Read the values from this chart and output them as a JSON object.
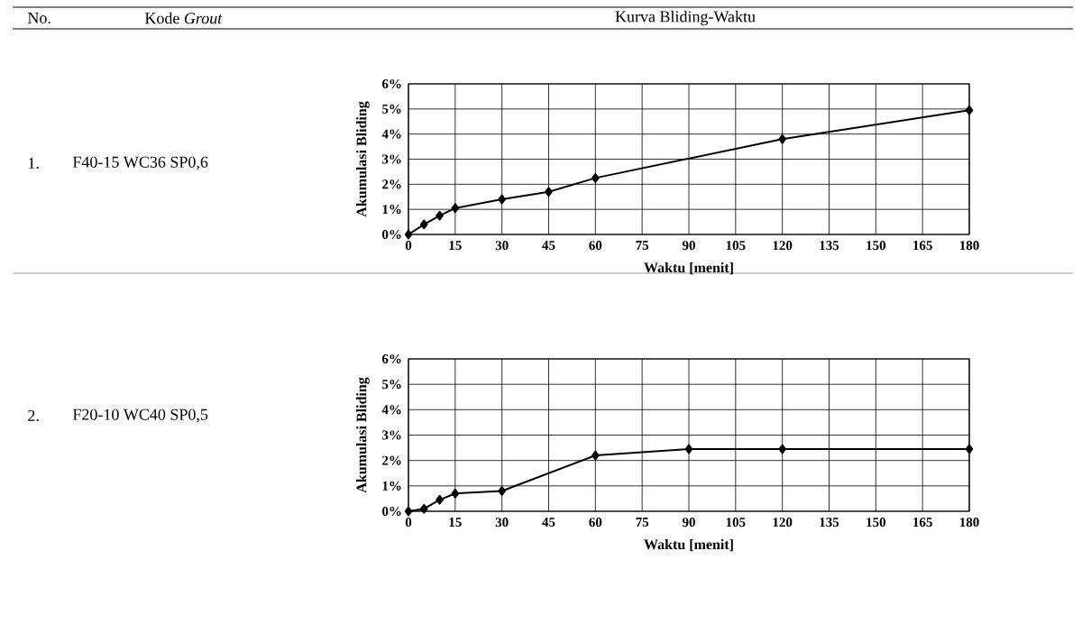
{
  "chart_data": [
    {
      "type": "line",
      "annotations": [
        "No.",
        "Kode *Grout*",
        "Kurva Bliding-Waktu",
        "1.",
        "F40-15 WC36 SP0,6"
      ],
      "xlabel": "Waktu [menit]",
      "ylabel": "Akumulasi Bliding",
      "x": [
        0,
        5,
        10,
        15,
        30,
        45,
        60,
        120,
        180
      ],
      "values": [
        0,
        0.4,
        0.75,
        1.05,
        1.4,
        1.7,
        2.25,
        3.8,
        4.95
      ],
      "color": "#000000",
      "marker": "diamond",
      "line_style": "solid",
      "grid": true,
      "xlim": [
        0,
        180
      ],
      "xticks": [
        0,
        15,
        30,
        45,
        60,
        75,
        90,
        105,
        120,
        135,
        150,
        165,
        180
      ],
      "ylim": [
        0,
        6
      ],
      "yticks": [
        {
          "value": 0,
          "label": "0%"
        },
        {
          "value": 1,
          "label": "1%"
        },
        {
          "value": 2,
          "label": "2%"
        },
        {
          "value": 3,
          "label": "3%"
        },
        {
          "value": 4,
          "label": "4%"
        },
        {
          "value": 5,
          "label": "5%"
        },
        {
          "value": 6,
          "label": "6%"
        }
      ]
    },
    {
      "type": "line",
      "annotations": [
        "2.",
        "F20-10 WC40 SP0,5"
      ],
      "xlabel": "Waktu [menit]",
      "ylabel": "Akumulasi Bliding",
      "x": [
        0,
        5,
        10,
        15,
        30,
        60,
        90,
        120,
        180
      ],
      "values": [
        0,
        0.1,
        0.45,
        0.7,
        0.8,
        2.2,
        2.45,
        2.45,
        2.45
      ],
      "color": "#000000",
      "marker": "diamond",
      "line_style": "solid",
      "grid": true,
      "xlim": [
        0,
        180
      ],
      "xticks": [
        0,
        15,
        30,
        45,
        60,
        75,
        90,
        105,
        120,
        135,
        150,
        165,
        180
      ],
      "ylim": [
        0,
        6
      ],
      "yticks": [
        {
          "value": 0,
          "label": "0%"
        },
        {
          "value": 1,
          "label": "1%"
        },
        {
          "value": 2,
          "label": "2%"
        },
        {
          "value": 3,
          "label": "3%"
        },
        {
          "value": 4,
          "label": "4%"
        },
        {
          "value": 5,
          "label": "5%"
        },
        {
          "value": 6,
          "label": "6%"
        }
      ]
    }
  ]
}
